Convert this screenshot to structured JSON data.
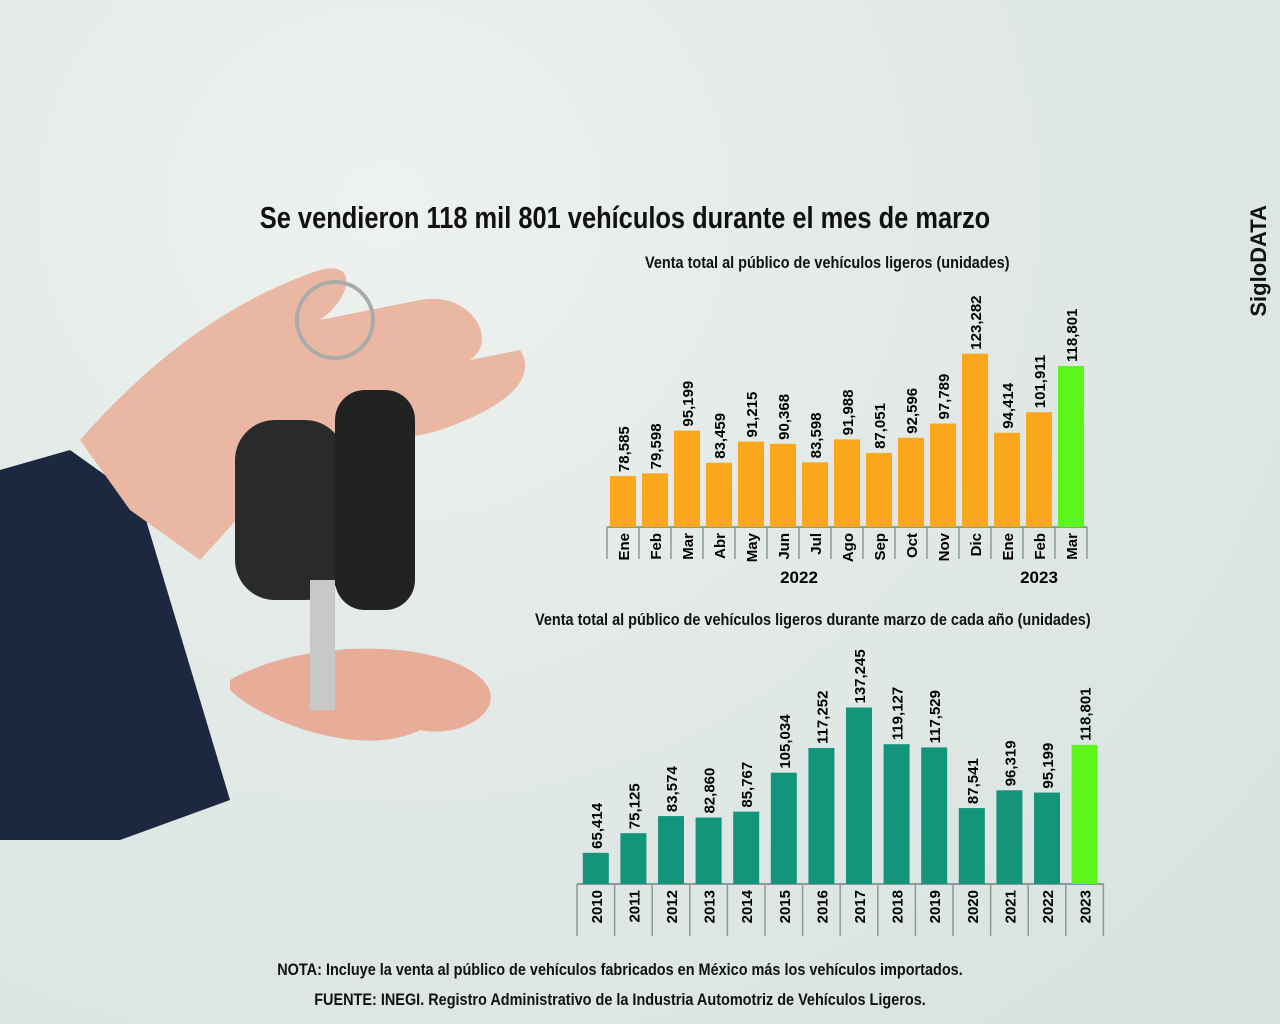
{
  "title": "Se vendieron 118 mil 801 vehículos durante el mes de marzo",
  "brand": "SigloDATA",
  "chart_data": [
    {
      "type": "bar",
      "title": "Venta total al público de vehículos ligeros (unidades)",
      "categories": [
        "Ene",
        "Feb",
        "Mar",
        "Abr",
        "May",
        "Jun",
        "Jul",
        "Ago",
        "Sep",
        "Oct",
        "Nov",
        "Dic",
        "Ene",
        "Feb",
        "Mar"
      ],
      "values": [
        78585,
        79598,
        95199,
        83459,
        91215,
        90368,
        83598,
        91988,
        87051,
        92596,
        97789,
        123282,
        94414,
        101911,
        118801
      ],
      "labels": [
        "78,585",
        "79,598",
        "95,199",
        "83,459",
        "91,215",
        "90,368",
        "83,598",
        "91,988",
        "87,051",
        "92,596",
        "97,789",
        "123,282",
        "94,414",
        "101,911",
        "118,801"
      ],
      "groups": [
        {
          "label": "2022",
          "from": 0,
          "to": 11
        },
        {
          "label": "2023",
          "from": 12,
          "to": 14
        }
      ],
      "highlight_index": 14,
      "ylim": [
        60000,
        125000
      ],
      "xlabel": "",
      "ylabel": "",
      "colors": {
        "bar": "#fba71b",
        "highlight": "#5cf51c"
      }
    },
    {
      "type": "bar",
      "title": "Venta total al público de vehículos ligeros durante marzo de cada año (unidades)",
      "categories": [
        "2010",
        "2011",
        "2012",
        "2013",
        "2014",
        "2015",
        "2016",
        "2017",
        "2018",
        "2019",
        "2020",
        "2021",
        "2022",
        "2023"
      ],
      "values": [
        65414,
        75125,
        83574,
        82860,
        85767,
        105034,
        117252,
        137245,
        119127,
        117529,
        87541,
        96319,
        95199,
        118801
      ],
      "labels": [
        "65,414",
        "75,125",
        "83,574",
        "82,860",
        "85,767",
        "105,034",
        "117,252",
        "137,245",
        "119,127",
        "117,529",
        "87,541",
        "96,319",
        "95,199",
        "118,801"
      ],
      "highlight_index": 13,
      "ylim": [
        50000,
        138000
      ],
      "xlabel": "",
      "ylabel": "",
      "colors": {
        "bar": "#12957a",
        "highlight": "#5cf51c"
      }
    }
  ],
  "note": "NOTA: Incluye la venta al público de vehículos fabricados en México más los vehículos importados.",
  "source": "FUENTE: INEGI. Registro Administrativo de la Industria Automotriz de Vehículos Ligeros."
}
